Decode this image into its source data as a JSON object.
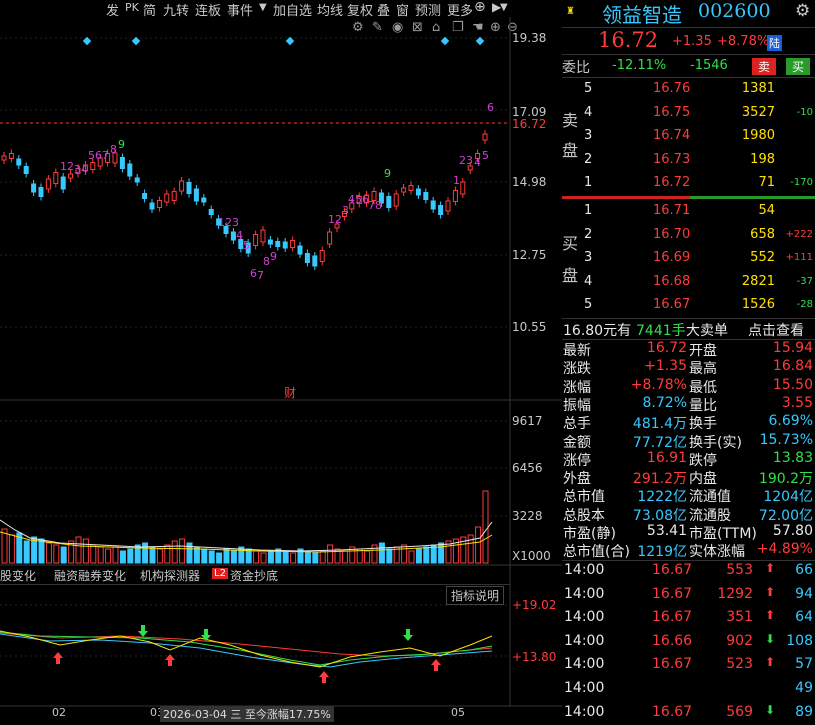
{
  "toolbar": {
    "items": [
      "发",
      "PK",
      "简",
      "九转",
      "连板",
      "事件",
      "▼",
      "加自选",
      "均线",
      "复权",
      "叠",
      "窗",
      "预测",
      "更多"
    ]
  },
  "price_axis": {
    "labels": [
      "19.38",
      "17.09",
      "16.72",
      "14.98",
      "12.75",
      "10.55"
    ]
  },
  "main_chart": {
    "markers_top": 5,
    "annotation": "财",
    "seq_labels": {
      "a": "12",
      "b": "34",
      "c": "567",
      "d": "8",
      "e": "9",
      "f": "123",
      "g": "4",
      "h": "5",
      "i": "6",
      "j": "7",
      "k": "8",
      "l": "9",
      "m": "12",
      "n": "3",
      "o": "456",
      "p": "78",
      "q": "9",
      "r": "1",
      "s": "23",
      "t": "4",
      "u": "5",
      "v": "6"
    }
  },
  "volume_axis": {
    "labels": [
      "9617",
      "6456",
      "3228",
      "X1000"
    ]
  },
  "bottom_tabs": [
    "股变化",
    "融资融券变化",
    "机构探测器",
    "资金抄底"
  ],
  "l2_badge": "L2",
  "indicator_btn": "指标说明",
  "indicator_axis": {
    "labels": [
      "+19.02",
      "+13.80"
    ]
  },
  "date_axis": {
    "labels": [
      "02",
      "03",
      "2026-03-04 三 至今涨幅17.75%",
      "05"
    ]
  },
  "stock": {
    "name": "领益智造",
    "code": "002600",
    "price": "16.72",
    "change": "+1.35",
    "change_pct": "+8.78%",
    "market_badge": "陆"
  },
  "weibi": {
    "label": "委比",
    "pct": "-12.11%",
    "diff": "-1546",
    "sell_btn": "卖",
    "buy_btn": "买"
  },
  "sell_side_label": [
    "卖",
    "盘"
  ],
  "buy_side_label": [
    "买",
    "盘"
  ],
  "asks": [
    {
      "level": "5",
      "price": "16.76",
      "vol": "1381",
      "chg": ""
    },
    {
      "level": "4",
      "price": "16.75",
      "vol": "3527",
      "chg": "-10"
    },
    {
      "level": "3",
      "price": "16.74",
      "vol": "1980",
      "chg": ""
    },
    {
      "level": "2",
      "price": "16.73",
      "vol": "198",
      "chg": ""
    },
    {
      "level": "1",
      "price": "16.72",
      "vol": "71",
      "chg": "-170"
    }
  ],
  "bids": [
    {
      "level": "1",
      "price": "16.71",
      "vol": "54",
      "chg": ""
    },
    {
      "level": "2",
      "price": "16.70",
      "vol": "658",
      "chg": "+222"
    },
    {
      "level": "3",
      "price": "16.69",
      "vol": "552",
      "chg": "+111"
    },
    {
      "level": "4",
      "price": "16.68",
      "vol": "2821",
      "chg": "-37"
    },
    {
      "level": "5",
      "price": "16.67",
      "vol": "1526",
      "chg": "-28"
    }
  ],
  "big_order": {
    "price": "16.80元有",
    "hands": "7441手",
    "label": "大卖单",
    "link": "点击查看"
  },
  "stats": [
    {
      "l": "最新",
      "v": "16.72",
      "vc": "red",
      "l2": "开盘",
      "v2": "15.94",
      "v2c": "red"
    },
    {
      "l": "涨跌",
      "v": "+1.35",
      "vc": "red",
      "l2": "最高",
      "v2": "16.84",
      "v2c": "red"
    },
    {
      "l": "涨幅",
      "v": "+8.78%",
      "vc": "red",
      "l2": "最低",
      "v2": "15.50",
      "v2c": "red"
    },
    {
      "l": "振幅",
      "v": "8.72%",
      "vc": "cyan",
      "l2": "量比",
      "v2": "3.55",
      "v2c": "red"
    },
    {
      "l": "总手",
      "v": "481.4万",
      "vc": "cyan",
      "l2": "换手",
      "v2": "6.69%",
      "v2c": "cyan"
    },
    {
      "l": "金额",
      "v": "77.72亿",
      "vc": "cyan",
      "l2": "换手(实)",
      "v2": "15.73%",
      "v2c": "cyan"
    },
    {
      "l": "涨停",
      "v": "16.91",
      "vc": "red",
      "l2": "跌停",
      "v2": "13.83",
      "v2c": "green"
    },
    {
      "l": "外盘",
      "v": "291.2万",
      "vc": "red",
      "l2": "内盘",
      "v2": "190.2万",
      "v2c": "green"
    },
    {
      "l": "总市值",
      "v": "1222亿",
      "vc": "cyan",
      "l2": "流通值",
      "v2": "1204亿",
      "v2c": "cyan"
    },
    {
      "l": "总股本",
      "v": "73.08亿",
      "vc": "cyan",
      "l2": "流通股",
      "v2": "72.00亿",
      "v2c": "cyan"
    },
    {
      "l": "市盈(静)",
      "v": "53.41",
      "vc": "white",
      "l2": "市盈(TTM)",
      "v2": "57.80",
      "v2c": "white"
    },
    {
      "l": "总市值(合)",
      "v": "1219亿",
      "vc": "cyan",
      "l2": "实体涨幅",
      "v2": "+4.89%",
      "v2c": "red"
    }
  ],
  "ticks": [
    {
      "t": "14:00",
      "p": "16.67",
      "v": "553",
      "dir": "up",
      "n": "66"
    },
    {
      "t": "14:00",
      "p": "16.67",
      "v": "1292",
      "dir": "up",
      "n": "94"
    },
    {
      "t": "14:00",
      "p": "16.67",
      "v": "351",
      "dir": "up",
      "n": "64"
    },
    {
      "t": "14:00",
      "p": "16.66",
      "v": "902",
      "dir": "down",
      "n": "108"
    },
    {
      "t": "14:00",
      "p": "16.67",
      "v": "523",
      "dir": "up",
      "n": "57"
    },
    {
      "t": "14:00",
      "p": "",
      "v": "",
      "dir": "",
      "n": "49"
    },
    {
      "t": "14:00",
      "p": "16.67",
      "v": "569",
      "dir": "down",
      "n": "89"
    }
  ]
}
